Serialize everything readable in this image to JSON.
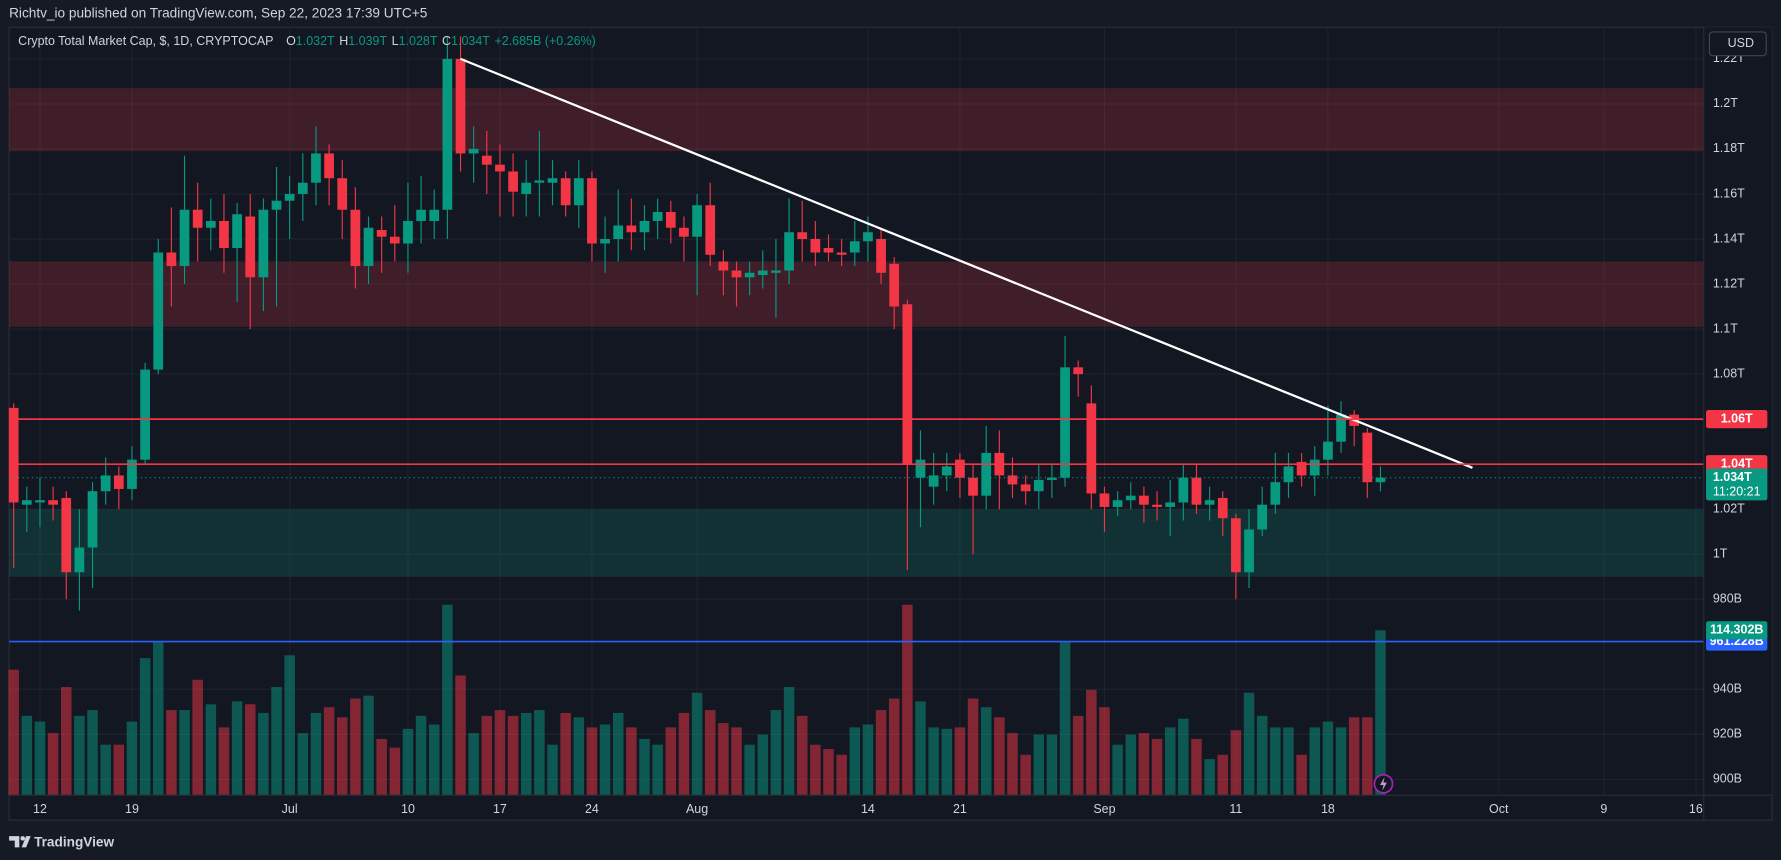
{
  "publisher": "Richtv_io published on TradingView.com, Sep 22, 2023 17:39 UTC+5",
  "brand": "TradingView",
  "currency_button": "USD",
  "chart_data": {
    "type": "candlestick",
    "title": "Crypto Total Market Cap, $, 1D, CRYPTOCAP",
    "ohlc_legend": [
      {
        "key": "O",
        "text": "1.032T"
      },
      {
        "key": "H",
        "text": "1.039T"
      },
      {
        "key": "L",
        "text": "1.028T"
      },
      {
        "key": "C",
        "text": "1.034T"
      }
    ],
    "change": "+2.685B (+0.26%)",
    "up_color": "#089981",
    "down_color": "#f23645",
    "xlim": [
      -0.35,
      128.6
    ],
    "xticks": [
      {
        "value": 2,
        "label": "12"
      },
      {
        "value": 9,
        "label": "19"
      },
      {
        "value": 21,
        "label": "Jul"
      },
      {
        "value": 30,
        "label": "10"
      },
      {
        "value": 37,
        "label": "17"
      },
      {
        "value": 44,
        "label": "24"
      },
      {
        "value": 52,
        "label": "Aug"
      },
      {
        "value": 65,
        "label": "14"
      },
      {
        "value": 72,
        "label": "21"
      },
      {
        "value": 83,
        "label": "Sep"
      },
      {
        "value": 93,
        "label": "11"
      },
      {
        "value": 100,
        "label": "18"
      },
      {
        "value": 113,
        "label": "Oct"
      },
      {
        "value": 121,
        "label": "9"
      },
      {
        "value": 128,
        "label": "16"
      }
    ],
    "ylim": [
      893,
      1234
    ],
    "yticks": [
      {
        "value": 900,
        "label": "900B"
      },
      {
        "value": 920,
        "label": "920B"
      },
      {
        "value": 940,
        "label": "940B"
      },
      {
        "value": 980,
        "label": "980B"
      },
      {
        "value": 1000,
        "label": "1T"
      },
      {
        "value": 1020,
        "label": "1.02T"
      },
      {
        "value": 1080,
        "label": "1.08T"
      },
      {
        "value": 1100,
        "label": "1.1T"
      },
      {
        "value": 1120,
        "label": "1.12T"
      },
      {
        "value": 1140,
        "label": "1.14T"
      },
      {
        "value": 1160,
        "label": "1.16T"
      },
      {
        "value": 1180,
        "label": "1.18T"
      },
      {
        "value": 1200,
        "label": "1.2T"
      },
      {
        "value": 1220,
        "label": "1.22T"
      }
    ],
    "grid": true,
    "open": [
      1065,
      1022,
      1023,
      1024,
      1025,
      992,
      1003,
      1028,
      1035,
      1029,
      1042,
      1082,
      1134,
      1128,
      1153,
      1145,
      1148,
      1136,
      1150,
      1123,
      1153,
      1157,
      1160,
      1165,
      1178,
      1167,
      1153,
      1128,
      1144,
      1141,
      1138,
      1148,
      1148,
      1153,
      1220,
      1178,
      1177,
      1173,
      1170,
      1160,
      1165,
      1165,
      1167,
      1155,
      1167,
      1138,
      1140,
      1146,
      1143,
      1148,
      1152,
      1145,
      1141,
      1155,
      1130,
      1126,
      1123,
      1124,
      1125,
      1126,
      1143,
      1140,
      1136,
      1134,
      1134,
      1139,
      1140,
      1129,
      1111,
      1034,
      1030,
      1035,
      1042,
      1034,
      1026,
      1045,
      1035,
      1031,
      1028,
      1033,
      1034,
      1083,
      1067,
      1027,
      1021,
      1024,
      1026,
      1022,
      1021,
      1023,
      1034,
      1022,
      1025,
      1016,
      992,
      1011,
      1022,
      1032,
      1041,
      1035,
      1042,
      1050,
      1062,
      1054,
      1032
    ],
    "high": [
      1067,
      1030,
      1034,
      1030,
      1028,
      1020,
      1032,
      1043,
      1039,
      1048,
      1085,
      1140,
      1154,
      1177,
      1165,
      1158,
      1160,
      1156,
      1160,
      1158,
      1172,
      1168,
      1178,
      1190,
      1182,
      1175,
      1163,
      1150,
      1150,
      1155,
      1165,
      1168,
      1162,
      1230,
      1230,
      1190,
      1188,
      1182,
      1178,
      1175,
      1188,
      1175,
      1170,
      1175,
      1170,
      1150,
      1162,
      1158,
      1155,
      1158,
      1157,
      1150,
      1160,
      1165,
      1135,
      1130,
      1130,
      1135,
      1140,
      1158,
      1157,
      1148,
      1142,
      1140,
      1148,
      1150,
      1145,
      1132,
      1113,
      1055,
      1045,
      1045,
      1045,
      1040,
      1057,
      1055,
      1043,
      1035,
      1040,
      1040,
      1097,
      1086,
      1075,
      1030,
      1028,
      1032,
      1030,
      1028,
      1033,
      1040,
      1040,
      1030,
      1028,
      1018,
      1020,
      1030,
      1045,
      1045,
      1045,
      1048,
      1066,
      1068,
      1064,
      1056,
      1039
    ],
    "low": [
      994,
      1010,
      1012,
      1015,
      980,
      975,
      985,
      1022,
      1020,
      1024,
      1040,
      1080,
      1110,
      1120,
      1130,
      1135,
      1125,
      1112,
      1100,
      1108,
      1110,
      1140,
      1148,
      1155,
      1155,
      1140,
      1118,
      1120,
      1125,
      1130,
      1125,
      1138,
      1140,
      1140,
      1170,
      1165,
      1160,
      1150,
      1150,
      1150,
      1150,
      1155,
      1150,
      1145,
      1130,
      1125,
      1130,
      1135,
      1135,
      1140,
      1138,
      1130,
      1115,
      1128,
      1115,
      1110,
      1115,
      1118,
      1105,
      1120,
      1130,
      1128,
      1130,
      1128,
      1128,
      1130,
      1120,
      1100,
      993,
      1012,
      1022,
      1028,
      1025,
      1000,
      1020,
      1020,
      1025,
      1022,
      1020,
      1025,
      1030,
      1070,
      1020,
      1010,
      1017,
      1020,
      1014,
      1015,
      1008,
      1015,
      1018,
      1015,
      1008,
      980,
      985,
      1008,
      1018,
      1025,
      1030,
      1026,
      1035,
      1045,
      1048,
      1025,
      1028
    ],
    "close": [
      1023,
      1024,
      1024,
      1022,
      992,
      1003,
      1028,
      1035,
      1029,
      1042,
      1082,
      1134,
      1128,
      1153,
      1145,
      1148,
      1136,
      1151,
      1123,
      1153,
      1157,
      1160,
      1165,
      1178,
      1167,
      1153,
      1128,
      1145,
      1141,
      1138,
      1148,
      1153,
      1153,
      1220,
      1178,
      1180,
      1173,
      1170,
      1161,
      1165,
      1166,
      1167,
      1155,
      1167,
      1138,
      1140,
      1146,
      1143,
      1148,
      1152,
      1145,
      1141,
      1155,
      1133,
      1126,
      1123,
      1125,
      1126,
      1126,
      1143,
      1140,
      1134,
      1134,
      1133,
      1139,
      1143,
      1125,
      1110,
      1040,
      1042,
      1035,
      1039,
      1034,
      1026,
      1045,
      1035,
      1031,
      1028,
      1033,
      1034,
      1083,
      1080,
      1027,
      1021,
      1024,
      1026,
      1022,
      1021,
      1023,
      1034,
      1022,
      1024,
      1016,
      992,
      1011,
      1022,
      1032,
      1039,
      1035,
      1042,
      1050,
      1062,
      1057,
      1032,
      1034
    ],
    "volume": [
      87,
      55,
      51,
      43,
      75,
      55,
      59,
      35,
      35,
      51,
      95,
      106,
      59,
      59,
      80,
      63,
      47,
      65,
      63,
      57,
      75,
      97,
      43,
      57,
      61,
      54,
      67,
      69,
      39,
      33,
      46,
      55,
      49,
      132,
      83,
      43,
      55,
      59,
      55,
      57,
      59,
      35,
      57,
      54,
      47,
      49,
      57,
      47,
      39,
      35,
      47,
      57,
      71,
      59,
      50,
      47,
      35,
      42,
      59,
      75,
      55,
      35,
      32,
      28,
      47,
      49,
      59,
      67,
      132,
      65,
      47,
      46,
      47,
      67,
      61,
      54,
      43,
      28,
      42,
      42,
      106,
      55,
      73,
      61,
      35,
      42,
      43,
      39,
      47,
      53,
      39,
      25,
      28,
      45,
      71,
      55,
      47,
      47,
      28,
      47,
      51,
      47,
      54,
      54,
      114.302
    ],
    "volume_label": "114.302B",
    "zones": [
      {
        "from": 1179,
        "to": 1207,
        "color": "#f23645"
      },
      {
        "from": 1101,
        "to": 1130,
        "color": "#f23645"
      },
      {
        "from": 990,
        "to": 1020,
        "color": "#089981"
      }
    ],
    "levels": [
      {
        "value": 1060,
        "label": "1.06T",
        "color": "#f23645"
      },
      {
        "value": 1040,
        "label": "1.04T",
        "color": "#f23645"
      },
      {
        "value": 961.228,
        "label": "961.228B",
        "color": "#2962ff"
      }
    ],
    "last_price": {
      "value": 1034,
      "label": "1.034T",
      "countdown": "11:20:21",
      "color": "#089981"
    },
    "trendline": {
      "x": [
        34,
        111
      ],
      "y": [
        1220,
        1038.4
      ],
      "color": "#ffffff"
    }
  }
}
